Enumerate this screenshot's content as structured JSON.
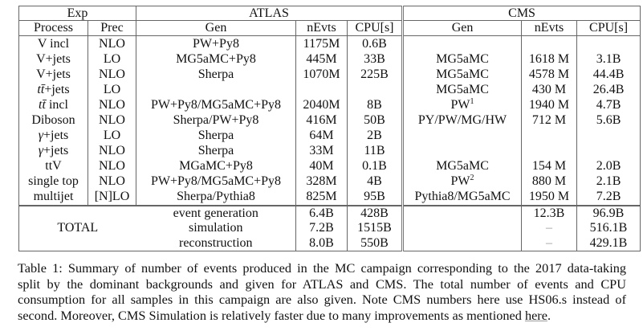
{
  "table": {
    "group_headers": {
      "exp": "Exp",
      "atlas": "ATLAS",
      "cms": "CMS"
    },
    "column_headers": {
      "process": "Process",
      "prec": "Prec",
      "atlas_gen": "Gen",
      "atlas_nevts": "nEvts",
      "atlas_cpu": "CPU[s]",
      "cms_gen": "Gen",
      "cms_nevts": "nEvts",
      "cms_cpu": "CPU[s]"
    },
    "rows": [
      {
        "process_math": "",
        "process": "V incl",
        "prec": "NLO",
        "atlas_gen": "PW+Py8",
        "atlas_nevts": "1175M",
        "atlas_cpu": "0.6B",
        "cms_gen": "",
        "cms_gen_sup": "",
        "cms_nevts": "",
        "cms_cpu": ""
      },
      {
        "process_math": "",
        "process": "V+jets",
        "prec": "LO",
        "atlas_gen": "MG5aMC+Py8",
        "atlas_nevts": "445M",
        "atlas_cpu": "33B",
        "cms_gen": "MG5aMC",
        "cms_gen_sup": "",
        "cms_nevts": "1618 M",
        "cms_cpu": "3.1B"
      },
      {
        "process_math": "",
        "process": "V+jets",
        "prec": "NLO",
        "atlas_gen": "Sherpa",
        "atlas_nevts": "1070M",
        "atlas_cpu": "225B",
        "cms_gen": "MG5aMC",
        "cms_gen_sup": "",
        "cms_nevts": "4578 M",
        "cms_cpu": "44.4B"
      },
      {
        "process_math": "tt̄",
        "process": "+jets",
        "prec": "LO",
        "atlas_gen": "",
        "atlas_nevts": "",
        "atlas_cpu": "",
        "cms_gen": "MG5aMC",
        "cms_gen_sup": "",
        "cms_nevts": "430 M",
        "cms_cpu": "26.4B"
      },
      {
        "process_math": "tt̄",
        "process": " incl",
        "prec": "NLO",
        "atlas_gen": "PW+Py8/MG5aMC+Py8",
        "atlas_nevts": "2040M",
        "atlas_cpu": "8B",
        "cms_gen": "PW",
        "cms_gen_sup": "1",
        "cms_nevts": "1940 M",
        "cms_cpu": "4.7B"
      },
      {
        "process_math": "",
        "process": "Diboson",
        "prec": "NLO",
        "atlas_gen": "Sherpa/PW+Py8",
        "atlas_nevts": "416M",
        "atlas_cpu": "50B",
        "cms_gen": "PY/PW/MG/HW",
        "cms_gen_sup": "",
        "cms_nevts": "712 M",
        "cms_cpu": "5.6B"
      },
      {
        "process_math": "γ",
        "process": "+jets",
        "prec": "LO",
        "atlas_gen": "Sherpa",
        "atlas_nevts": "64M",
        "atlas_cpu": "2B",
        "cms_gen": "",
        "cms_gen_sup": "",
        "cms_nevts": "",
        "cms_cpu": ""
      },
      {
        "process_math": "γ",
        "process": "+jets",
        "prec": "NLO",
        "atlas_gen": "Sherpa",
        "atlas_nevts": "33M",
        "atlas_cpu": "11B",
        "cms_gen": "",
        "cms_gen_sup": "",
        "cms_nevts": "",
        "cms_cpu": ""
      },
      {
        "process_math": "",
        "process": "ttV",
        "prec": "NLO",
        "atlas_gen": "MGaMC+Py8",
        "atlas_nevts": "40M",
        "atlas_cpu": "0.1B",
        "cms_gen": "MG5aMC",
        "cms_gen_sup": "",
        "cms_nevts": "154 M",
        "cms_cpu": "2.0B"
      },
      {
        "process_math": "",
        "process": "single top",
        "prec": "NLO",
        "atlas_gen": "PW+Py8/MG5aMC+Py8",
        "atlas_nevts": "328M",
        "atlas_cpu": "4B",
        "cms_gen": "PW",
        "cms_gen_sup": "2",
        "cms_nevts": "880 M",
        "cms_cpu": "2.1B"
      },
      {
        "process_math": "",
        "process": "multijet",
        "prec": "[N]LO",
        "atlas_gen": "Sherpa/Pythia8",
        "atlas_nevts": "825M",
        "atlas_cpu": "95B",
        "cms_gen": "Pythia8/MG5aMC",
        "cms_gen_sup": "",
        "cms_nevts": "1950 M",
        "cms_cpu": "7.2B"
      }
    ],
    "totals": {
      "label": "TOTAL",
      "rows": [
        {
          "stage": "event generation",
          "atlas_nevts": "6.4B",
          "atlas_cpu": "428B",
          "cms_nevts": "12.3B",
          "cms_cpu": "96.9B"
        },
        {
          "stage": "simulation",
          "atlas_nevts": "7.2B",
          "atlas_cpu": "1515B",
          "cms_nevts": "–",
          "cms_cpu": "516.1B"
        },
        {
          "stage": "reconstruction",
          "atlas_nevts": "8.0B",
          "atlas_cpu": "550B",
          "cms_nevts": "–",
          "cms_cpu": "429.1B"
        }
      ]
    }
  },
  "caption": {
    "lines": [
      "Table 1: Summary of number of events produced in the MC campaign corresponding to the 2017 data-taking",
      "split by the dominant backgrounds and given for ATLAS and CMS. The total number of events and CPU",
      "consumption for all samples in this campaign are also given. Note CMS numbers here use HS06.s instead of",
      "second. Moreover, CMS Simulation is relatively faster due to many improvements as mentioned "
    ],
    "link_text": "here",
    "end": "."
  }
}
